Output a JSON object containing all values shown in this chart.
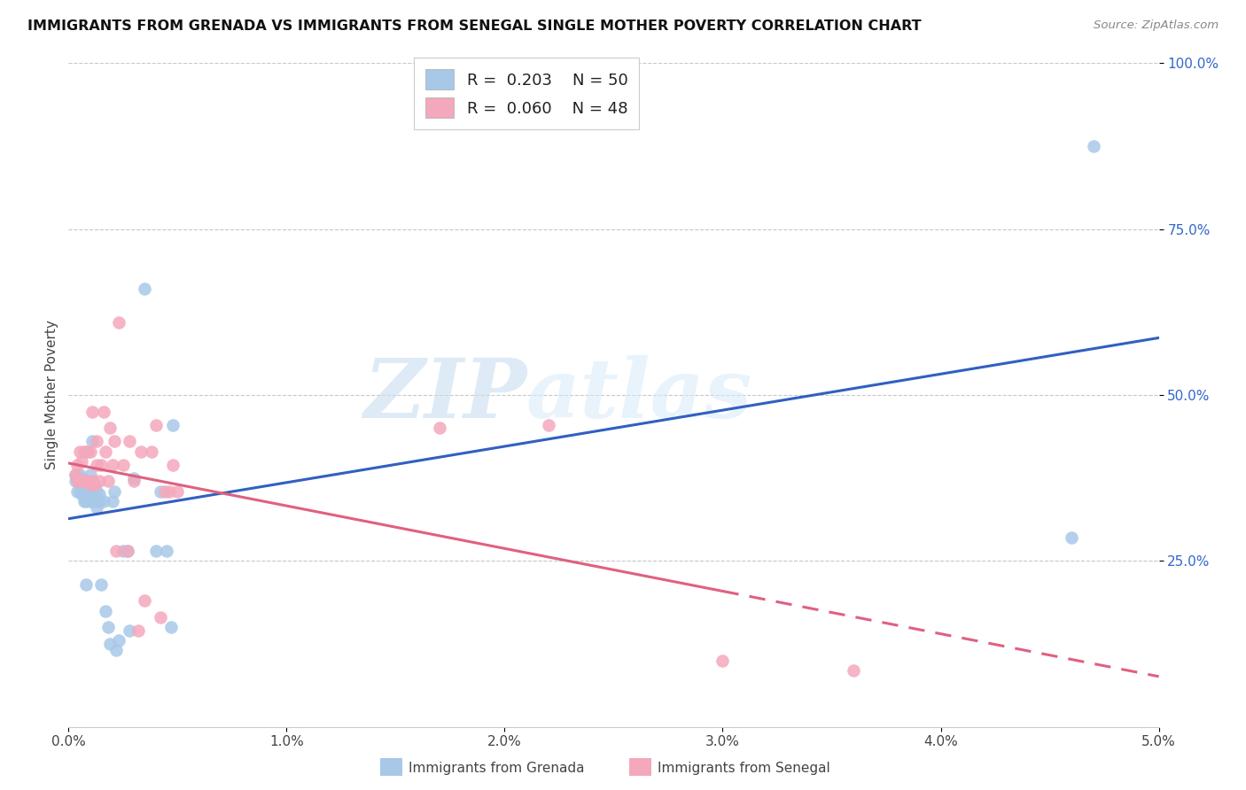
{
  "title": "IMMIGRANTS FROM GRENADA VS IMMIGRANTS FROM SENEGAL SINGLE MOTHER POVERTY CORRELATION CHART",
  "source": "Source: ZipAtlas.com",
  "ylabel": "Single Mother Poverty",
  "legend_label1": "Immigrants from Grenada",
  "legend_label2": "Immigrants from Senegal",
  "R1": "0.203",
  "N1": "50",
  "R2": "0.060",
  "N2": "48",
  "color_grenada": "#a8c8e8",
  "color_senegal": "#f4a8bc",
  "color_line1": "#3060c0",
  "color_line2": "#e06080",
  "watermark_zip": "ZIP",
  "watermark_atlas": "atlas",
  "grenada_x": [
    0.0003,
    0.0003,
    0.0004,
    0.0004,
    0.0005,
    0.0005,
    0.0005,
    0.0006,
    0.0006,
    0.0006,
    0.0007,
    0.0007,
    0.0007,
    0.0008,
    0.0008,
    0.0008,
    0.0009,
    0.0009,
    0.001,
    0.001,
    0.001,
    0.0011,
    0.0011,
    0.0012,
    0.0012,
    0.0013,
    0.0013,
    0.0014,
    0.0014,
    0.0015,
    0.0016,
    0.0017,
    0.0018,
    0.0019,
    0.002,
    0.0021,
    0.0022,
    0.0023,
    0.0025,
    0.0027,
    0.0028,
    0.003,
    0.0035,
    0.004,
    0.0042,
    0.0045,
    0.0047,
    0.0048,
    0.046,
    0.047
  ],
  "grenada_y": [
    0.37,
    0.38,
    0.355,
    0.375,
    0.355,
    0.37,
    0.38,
    0.35,
    0.36,
    0.375,
    0.34,
    0.355,
    0.37,
    0.215,
    0.34,
    0.36,
    0.355,
    0.37,
    0.34,
    0.355,
    0.38,
    0.35,
    0.43,
    0.34,
    0.36,
    0.33,
    0.355,
    0.34,
    0.35,
    0.215,
    0.34,
    0.175,
    0.15,
    0.125,
    0.34,
    0.355,
    0.115,
    0.13,
    0.265,
    0.265,
    0.145,
    0.375,
    0.66,
    0.265,
    0.355,
    0.265,
    0.15,
    0.455,
    0.285,
    0.875
  ],
  "senegal_x": [
    0.0003,
    0.0004,
    0.0004,
    0.0005,
    0.0005,
    0.0006,
    0.0006,
    0.0007,
    0.0007,
    0.0008,
    0.0008,
    0.0009,
    0.0009,
    0.001,
    0.001,
    0.0011,
    0.0011,
    0.0012,
    0.0013,
    0.0013,
    0.0014,
    0.0015,
    0.0016,
    0.0017,
    0.0018,
    0.0019,
    0.002,
    0.0021,
    0.0022,
    0.0023,
    0.0025,
    0.0027,
    0.0028,
    0.003,
    0.0032,
    0.0033,
    0.0035,
    0.0038,
    0.004,
    0.0042,
    0.0044,
    0.0046,
    0.0048,
    0.005,
    0.017,
    0.022,
    0.03,
    0.036
  ],
  "senegal_y": [
    0.38,
    0.37,
    0.395,
    0.37,
    0.415,
    0.37,
    0.4,
    0.37,
    0.415,
    0.37,
    0.415,
    0.37,
    0.415,
    0.365,
    0.415,
    0.37,
    0.475,
    0.365,
    0.395,
    0.43,
    0.37,
    0.395,
    0.475,
    0.415,
    0.37,
    0.45,
    0.395,
    0.43,
    0.265,
    0.61,
    0.395,
    0.265,
    0.43,
    0.37,
    0.145,
    0.415,
    0.19,
    0.415,
    0.455,
    0.165,
    0.355,
    0.355,
    0.395,
    0.355,
    0.45,
    0.455,
    0.1,
    0.085
  ],
  "xmin": 0.0,
  "xmax": 0.05,
  "ymin": 0.0,
  "ymax": 1.0,
  "xtick_positions": [
    0.0,
    0.01,
    0.02,
    0.03,
    0.04,
    0.05
  ],
  "xtick_labels": [
    "0.0%",
    "1.0%",
    "2.0%",
    "3.0%",
    "4.0%",
    "5.0%"
  ],
  "ytick_positions": [
    0.25,
    0.5,
    0.75,
    1.0
  ],
  "ytick_labels": [
    "25.0%",
    "50.0%",
    "75.0%",
    "100.0%"
  ]
}
